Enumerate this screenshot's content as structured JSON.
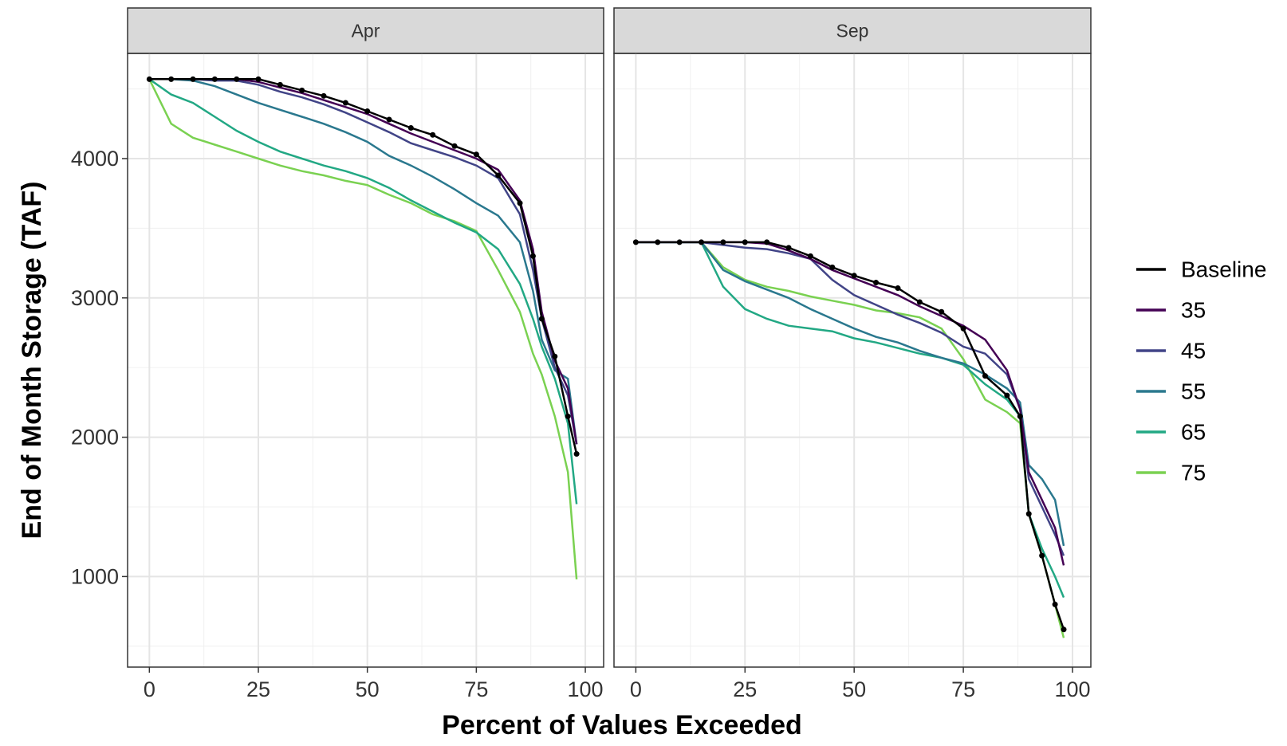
{
  "chart_data": {
    "type": "line",
    "xlabel": "Percent of Values Exceeded",
    "ylabel": "End of Month Storage (TAF)",
    "xlim": [
      -5,
      104.2
    ],
    "ylim": [
      350,
      4755
    ],
    "xticks": [
      0,
      25,
      50,
      75,
      100
    ],
    "yticks": [
      1000,
      2000,
      3000,
      4000
    ],
    "minor_xticks": [
      12.5,
      37.5,
      62.5,
      87.5
    ],
    "minor_yticks": [
      500,
      1500,
      2500,
      3500,
      4500
    ],
    "grid": true,
    "legend": "right",
    "series": [
      {
        "name": "Baseline",
        "color": "#000000",
        "markers": true
      },
      {
        "name": "35",
        "color": "#440154"
      },
      {
        "name": "45",
        "color": "#414487"
      },
      {
        "name": "55",
        "color": "#2a788e"
      },
      {
        "name": "65",
        "color": "#22a884"
      },
      {
        "name": "75",
        "color": "#7ad151"
      }
    ],
    "x": [
      0,
      5,
      10,
      15,
      20,
      25,
      30,
      35,
      40,
      45,
      50,
      55,
      60,
      65,
      70,
      75,
      80,
      85,
      88,
      90,
      93,
      96,
      98
    ],
    "panels": [
      {
        "title": "Apr",
        "series": [
          {
            "values": [
              4570,
              4570,
              4570,
              4570,
              4570,
              4570,
              4530,
              4490,
              4450,
              4400,
              4340,
              4280,
              4220,
              4170,
              4090,
              4030,
              3880,
              3680,
              3300,
              2850,
              2580,
              2150,
              1880
            ]
          },
          {
            "values": [
              4570,
              4570,
              4570,
              4570,
              4570,
              4550,
              4510,
              4470,
              4420,
              4370,
              4320,
              4250,
              4180,
              4120,
              4060,
              4000,
              3920,
              3700,
              3350,
              2900,
              2550,
              2350,
              1950
            ]
          },
          {
            "values": [
              4570,
              4570,
              4570,
              4560,
              4560,
              4530,
              4480,
              4440,
              4390,
              4330,
              4260,
              4190,
              4110,
              4060,
              4010,
              3950,
              3860,
              3600,
              3200,
              2850,
              2500,
              2300,
              1950
            ]
          },
          {
            "values": [
              4570,
              4570,
              4560,
              4520,
              4460,
              4400,
              4350,
              4300,
              4250,
              4190,
              4120,
              4020,
              3950,
              3870,
              3780,
              3680,
              3590,
              3400,
              3050,
              2700,
              2480,
              2420,
              1950
            ]
          },
          {
            "values": [
              4570,
              4460,
              4400,
              4300,
              4200,
              4120,
              4050,
              4000,
              3950,
              3910,
              3860,
              3790,
              3700,
              3620,
              3540,
              3470,
              3350,
              3100,
              2850,
              2650,
              2420,
              2100,
              1520
            ]
          },
          {
            "values": [
              4570,
              4250,
              4150,
              4100,
              4050,
              4000,
              3950,
              3910,
              3880,
              3840,
              3810,
              3740,
              3680,
              3600,
              3550,
              3480,
              3200,
              2900,
              2600,
              2450,
              2150,
              1750,
              980
            ]
          }
        ]
      },
      {
        "title": "Sep",
        "series": [
          {
            "values": [
              3400,
              3400,
              3400,
              3400,
              3400,
              3400,
              3400,
              3360,
              3300,
              3220,
              3160,
              3110,
              3070,
              2970,
              2900,
              2780,
              2440,
              2300,
              2150,
              1450,
              1150,
              800,
              620
            ]
          },
          {
            "values": [
              3400,
              3400,
              3400,
              3400,
              3400,
              3400,
              3390,
              3340,
              3280,
              3200,
              3140,
              3080,
              3020,
              2940,
              2870,
              2800,
              2700,
              2480,
              2200,
              1750,
              1550,
              1350,
              1080
            ]
          },
          {
            "values": [
              3400,
              3400,
              3400,
              3400,
              3380,
              3360,
              3350,
              3320,
              3280,
              3130,
              3020,
              2950,
              2880,
              2820,
              2750,
              2650,
              2600,
              2450,
              2200,
              1700,
              1500,
              1300,
              1150
            ]
          },
          {
            "values": [
              3400,
              3400,
              3400,
              3400,
              3200,
              3120,
              3060,
              3000,
              2920,
              2850,
              2780,
              2720,
              2680,
              2620,
              2570,
              2530,
              2450,
              2350,
              2250,
              1800,
              1700,
              1550,
              1220
            ]
          },
          {
            "values": [
              3400,
              3400,
              3400,
              3400,
              3080,
              2920,
              2850,
              2800,
              2780,
              2760,
              2710,
              2680,
              2640,
              2600,
              2570,
              2520,
              2380,
              2270,
              2150,
              1450,
              1200,
              1000,
              850
            ]
          },
          {
            "values": [
              3400,
              3400,
              3400,
              3400,
              3220,
              3130,
              3080,
              3050,
              3010,
              2980,
              2950,
              2910,
              2890,
              2860,
              2780,
              2560,
              2270,
              2180,
              2100,
              1450,
              1150,
              800,
              560
            ]
          }
        ]
      }
    ]
  }
}
